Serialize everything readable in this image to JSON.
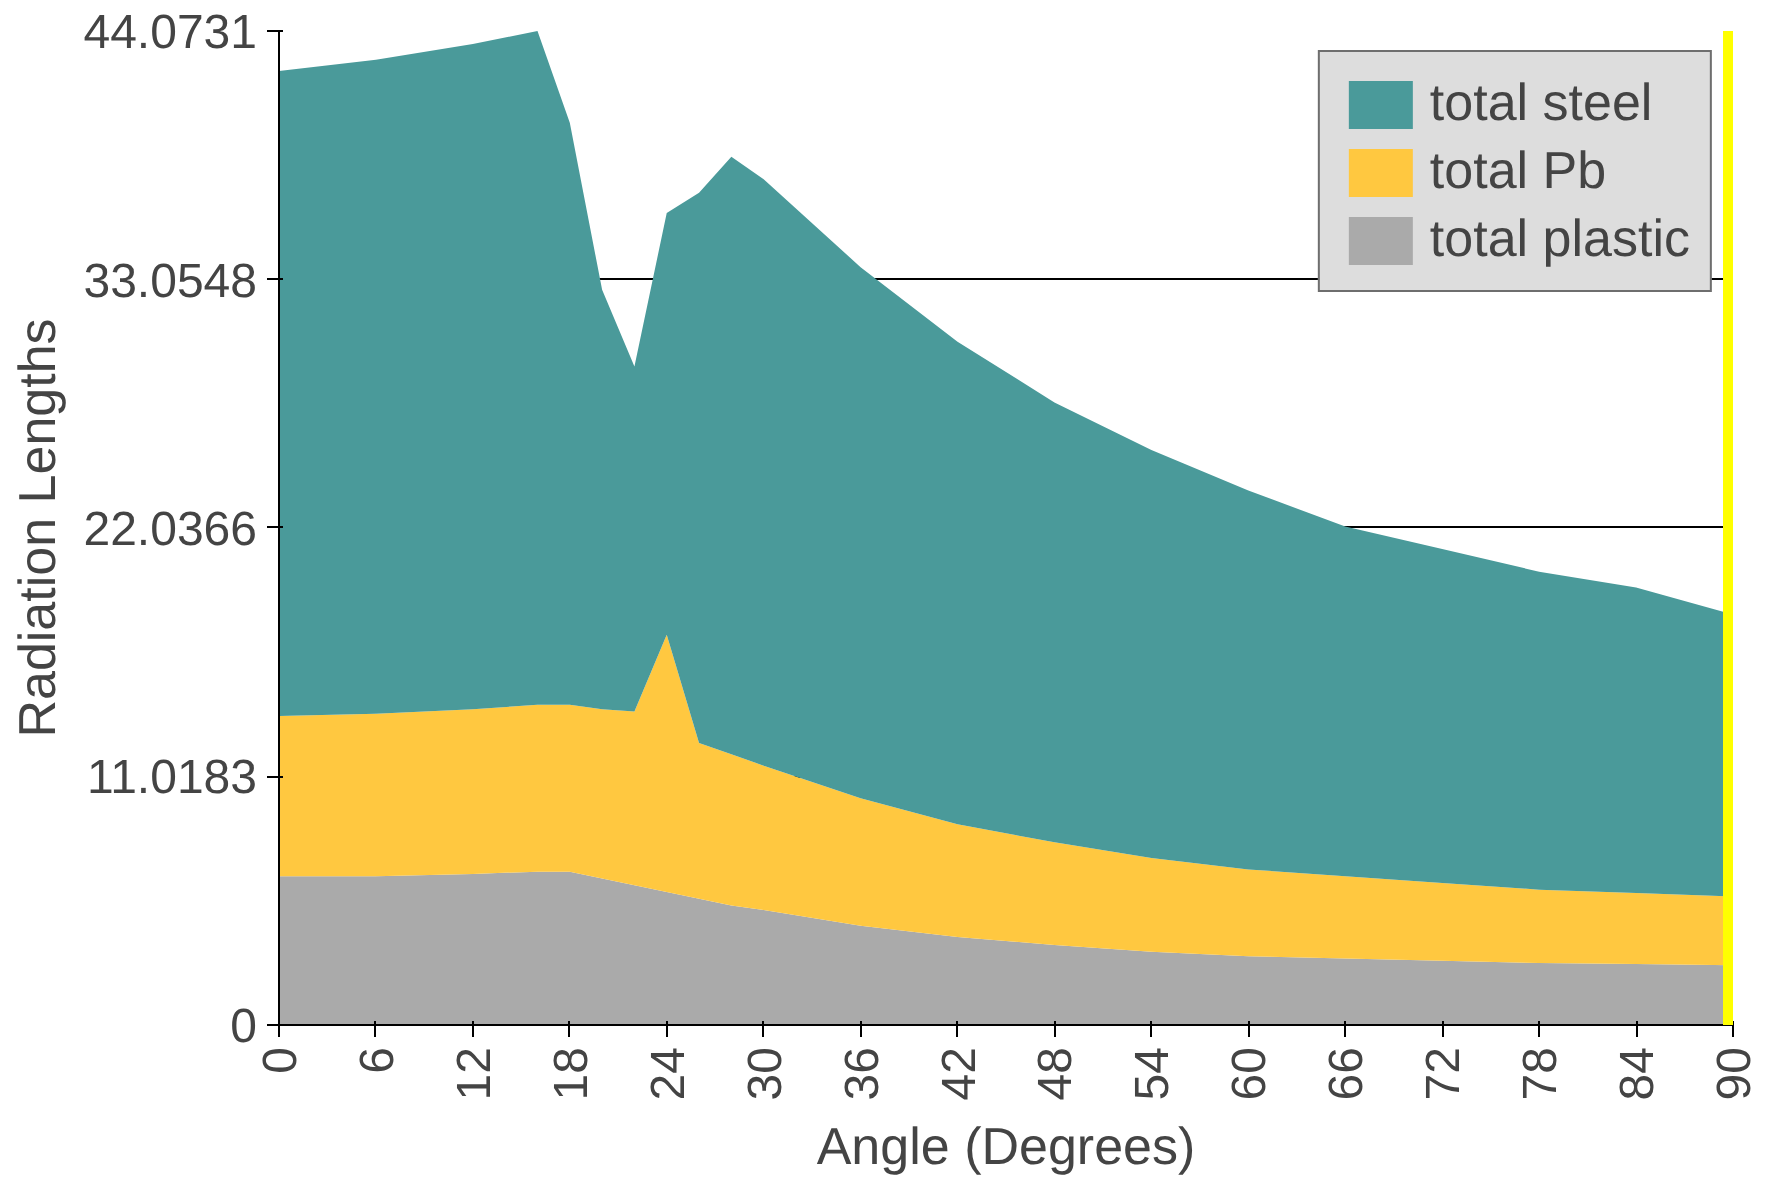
{
  "chart_data": {
    "type": "area",
    "stacked": true,
    "xlabel": "Angle (Degrees)",
    "ylabel": "Radiation Lengths",
    "x": [
      0,
      6,
      12,
      16,
      18,
      20,
      22,
      24,
      26,
      28,
      30,
      36,
      42,
      48,
      54,
      60,
      66,
      72,
      78,
      84,
      90
    ],
    "series": [
      {
        "name": "total plastic",
        "color": "#aaaaaa",
        "values": [
          6.6,
          6.6,
          6.7,
          6.8,
          6.8,
          6.5,
          6.2,
          5.9,
          5.6,
          5.3,
          5.1,
          4.4,
          3.9,
          3.55,
          3.25,
          3.05,
          2.95,
          2.85,
          2.75,
          2.7,
          2.65
        ]
      },
      {
        "name": "total Pb",
        "color": "#ffc840",
        "values": [
          7.1,
          7.2,
          7.3,
          7.4,
          7.4,
          7.5,
          7.7,
          11.4,
          6.9,
          6.7,
          6.4,
          5.65,
          5.0,
          4.55,
          4.15,
          3.85,
          3.65,
          3.45,
          3.25,
          3.15,
          3.05
        ]
      },
      {
        "name": "total steel",
        "color": "#4a9a9a",
        "values": [
          28.6,
          29.0,
          29.5,
          29.87,
          25.8,
          18.6,
          15.3,
          18.7,
          24.4,
          26.5,
          26.0,
          23.55,
          21.4,
          19.5,
          18.1,
          16.8,
          15.5,
          14.8,
          14.1,
          13.55,
          12.5
        ]
      }
    ],
    "xlim": [
      0,
      90
    ],
    "xticks": [
      0,
      6,
      12,
      18,
      24,
      30,
      36,
      42,
      48,
      54,
      60,
      66,
      72,
      78,
      84,
      90
    ],
    "ylim": [
      0,
      44.0731
    ],
    "yticks": [
      0,
      11.0183,
      22.0366,
      33.0548,
      44.0731
    ],
    "ref_lines": [
      {
        "axis": "x",
        "value": 90,
        "color": "#ffff00"
      }
    ],
    "grid": "y",
    "legend": "top right"
  }
}
